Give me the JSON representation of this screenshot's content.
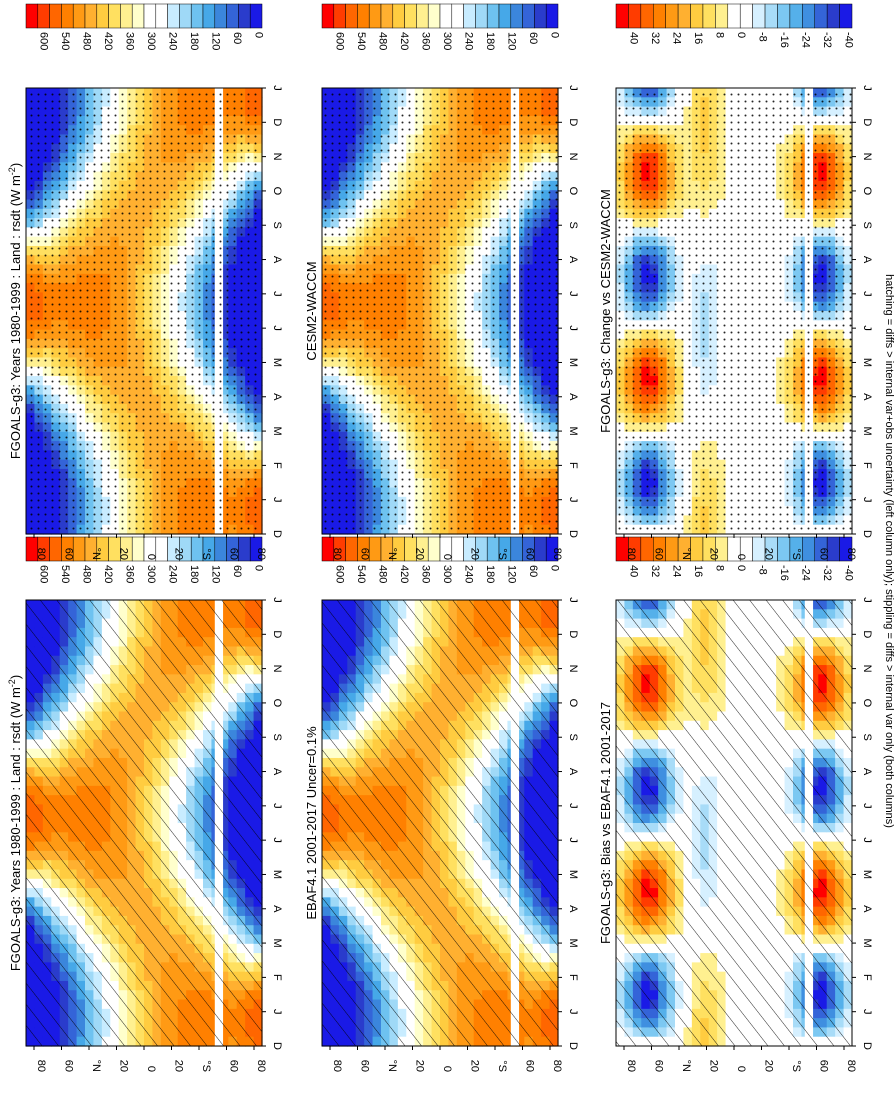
{
  "footnote": "hatching = diffs > internal var+obs uncertainty (left column only); stippling = diffs > internal var only (both columns)",
  "months_axis": [
    "D",
    "J",
    "F",
    "M",
    "A",
    "M",
    "J",
    "J",
    "A",
    "S",
    "O",
    "N",
    "D",
    "J"
  ],
  "lat_axis": [
    "80",
    "60",
    "°N",
    "20",
    "0",
    "20",
    "°S",
    "60",
    "80"
  ],
  "palettes": {
    "clim": [
      "#ff0000",
      "#ff3c00",
      "#ff6600",
      "#ff8000",
      "#ff9a14",
      "#ffb030",
      "#ffcc40",
      "#ffe060",
      "#fff090",
      "#ffffcc",
      "#ffffff",
      "#ffffff",
      "#c8ecff",
      "#9fd9f7",
      "#6ec2f0",
      "#46a8e8",
      "#3b86dc",
      "#3464d8",
      "#2a3ccc",
      "#1a1ae6"
    ],
    "diff": [
      "#ff0000",
      "#ff3c00",
      "#ff6600",
      "#ff8000",
      "#ff9a14",
      "#ffb030",
      "#ffcc40",
      "#ffe060",
      "#fff090",
      "#ffffff",
      "#ffffff",
      "#d6f0ff",
      "#a8dcf8",
      "#7cc8f2",
      "#55b0ea",
      "#3f8fe0",
      "#3464d8",
      "#2a3ccc",
      "#1a1ae6"
    ]
  },
  "panels": [
    {
      "id": "top-left",
      "title": "FGOALS-g3: Years 1980-1999 : Land : rsdt (W m",
      "title_sup": "-2",
      "title_end": ")",
      "colorbar_labels": [
        "600",
        "540",
        "480",
        "420",
        "360",
        "300",
        "240",
        "180",
        "120",
        "60",
        "0"
      ],
      "pattern": "hatch"
    },
    {
      "id": "top-right",
      "title": "FGOALS-g3: Years 1980-1999 : Land : rsdt (W m",
      "title_sup": "-2",
      "title_end": ")",
      "colorbar_labels": [
        "600",
        "540",
        "480",
        "420",
        "360",
        "300",
        "240",
        "180",
        "120",
        "60",
        "0"
      ],
      "pattern": "stipple"
    },
    {
      "id": "middle-left",
      "title": "EBAF4.1 2001-2017 Uncer=0.1%",
      "title_sup": "",
      "title_end": "",
      "colorbar_labels": [
        "600",
        "540",
        "480",
        "420",
        "360",
        "300",
        "240",
        "180",
        "120",
        "60",
        "0"
      ],
      "pattern": "hatch"
    },
    {
      "id": "middle-right",
      "title": "CESM2-WACCM",
      "title_sup": "",
      "title_end": "",
      "colorbar_labels": [
        "600",
        "540",
        "480",
        "420",
        "360",
        "300",
        "240",
        "180",
        "120",
        "60",
        "0"
      ],
      "pattern": "stipple"
    },
    {
      "id": "bottom-left",
      "title": "FGOALS-g3: Bias vs EBAF4.1 2001-2017",
      "title_sup": "",
      "title_end": "",
      "colorbar_labels": [
        "40",
        "32",
        "24",
        "16",
        "8",
        "0",
        "-8",
        "-16",
        "-24",
        "-32",
        "-40"
      ],
      "pattern": "hatch"
    },
    {
      "id": "bottom-right",
      "title": "FGOALS-g3: Change vs CESM2-WACCM",
      "title_sup": "",
      "title_end": "",
      "colorbar_labels": [
        "40",
        "32",
        "24",
        "16",
        "8",
        "0",
        "-8",
        "-16",
        "-24",
        "-32",
        "-40"
      ],
      "pattern": "stipple"
    }
  ],
  "chart_data": [
    {
      "type": "heatmap",
      "title": "FGOALS-g3: Years 1980-1999 : Land : rsdt (W m-2)",
      "xlabel": "",
      "ylabel": "",
      "x": [
        "D",
        "J",
        "F",
        "M",
        "A",
        "M",
        "J",
        "J",
        "A",
        "S",
        "O",
        "N",
        "D",
        "J"
      ],
      "y": [
        "80N",
        "60N",
        "40N",
        "20N",
        "0",
        "20S",
        "40S",
        "60S",
        "80S"
      ],
      "zlim": [
        0,
        600
      ],
      "grid": false,
      "legend": "right"
    },
    {
      "type": "heatmap",
      "title": "FGOALS-g3: Years 1980-1999 : Land : rsdt (W m-2)",
      "xlabel": "",
      "ylabel": "",
      "x": [
        "D",
        "J",
        "F",
        "M",
        "A",
        "M",
        "J",
        "J",
        "A",
        "S",
        "O",
        "N",
        "D",
        "J"
      ],
      "y": [
        "80N",
        "60N",
        "40N",
        "20N",
        "0",
        "20S",
        "40S",
        "60S",
        "80S"
      ],
      "zlim": [
        0,
        600
      ],
      "grid": false,
      "legend": "right"
    },
    {
      "type": "heatmap",
      "title": "EBAF4.1 2001-2017 Uncer=0.1%",
      "xlabel": "",
      "ylabel": "",
      "x": [
        "D",
        "J",
        "F",
        "M",
        "A",
        "M",
        "J",
        "J",
        "A",
        "S",
        "O",
        "N",
        "D",
        "J"
      ],
      "y": [
        "80N",
        "60N",
        "40N",
        "20N",
        "0",
        "20S",
        "40S",
        "60S",
        "80S"
      ],
      "zlim": [
        0,
        600
      ],
      "grid": false,
      "legend": "right"
    },
    {
      "type": "heatmap",
      "title": "CESM2-WACCM",
      "xlabel": "",
      "ylabel": "",
      "x": [
        "D",
        "J",
        "F",
        "M",
        "A",
        "M",
        "J",
        "J",
        "A",
        "S",
        "O",
        "N",
        "D",
        "J"
      ],
      "y": [
        "80N",
        "60N",
        "40N",
        "20N",
        "0",
        "20S",
        "40S",
        "60S",
        "80S"
      ],
      "zlim": [
        0,
        600
      ],
      "grid": false,
      "legend": "right"
    },
    {
      "type": "heatmap",
      "title": "FGOALS-g3: Bias vs EBAF4.1 2001-2017",
      "xlabel": "",
      "ylabel": "",
      "x": [
        "D",
        "J",
        "F",
        "M",
        "A",
        "M",
        "J",
        "J",
        "A",
        "S",
        "O",
        "N",
        "D",
        "J"
      ],
      "y": [
        "80N",
        "60N",
        "40N",
        "20N",
        "0",
        "20S",
        "40S",
        "60S",
        "80S"
      ],
      "zlim": [
        -40,
        40
      ],
      "grid": false,
      "legend": "right"
    },
    {
      "type": "heatmap",
      "title": "FGOALS-g3: Change vs CESM2-WACCM",
      "xlabel": "",
      "ylabel": "",
      "x": [
        "D",
        "J",
        "F",
        "M",
        "A",
        "M",
        "J",
        "J",
        "A",
        "S",
        "O",
        "N",
        "D",
        "J"
      ],
      "y": [
        "80N",
        "60N",
        "40N",
        "20N",
        "0",
        "20S",
        "40S",
        "60S",
        "80S"
      ],
      "zlim": [
        -40,
        40
      ],
      "grid": false,
      "legend": "right"
    }
  ]
}
